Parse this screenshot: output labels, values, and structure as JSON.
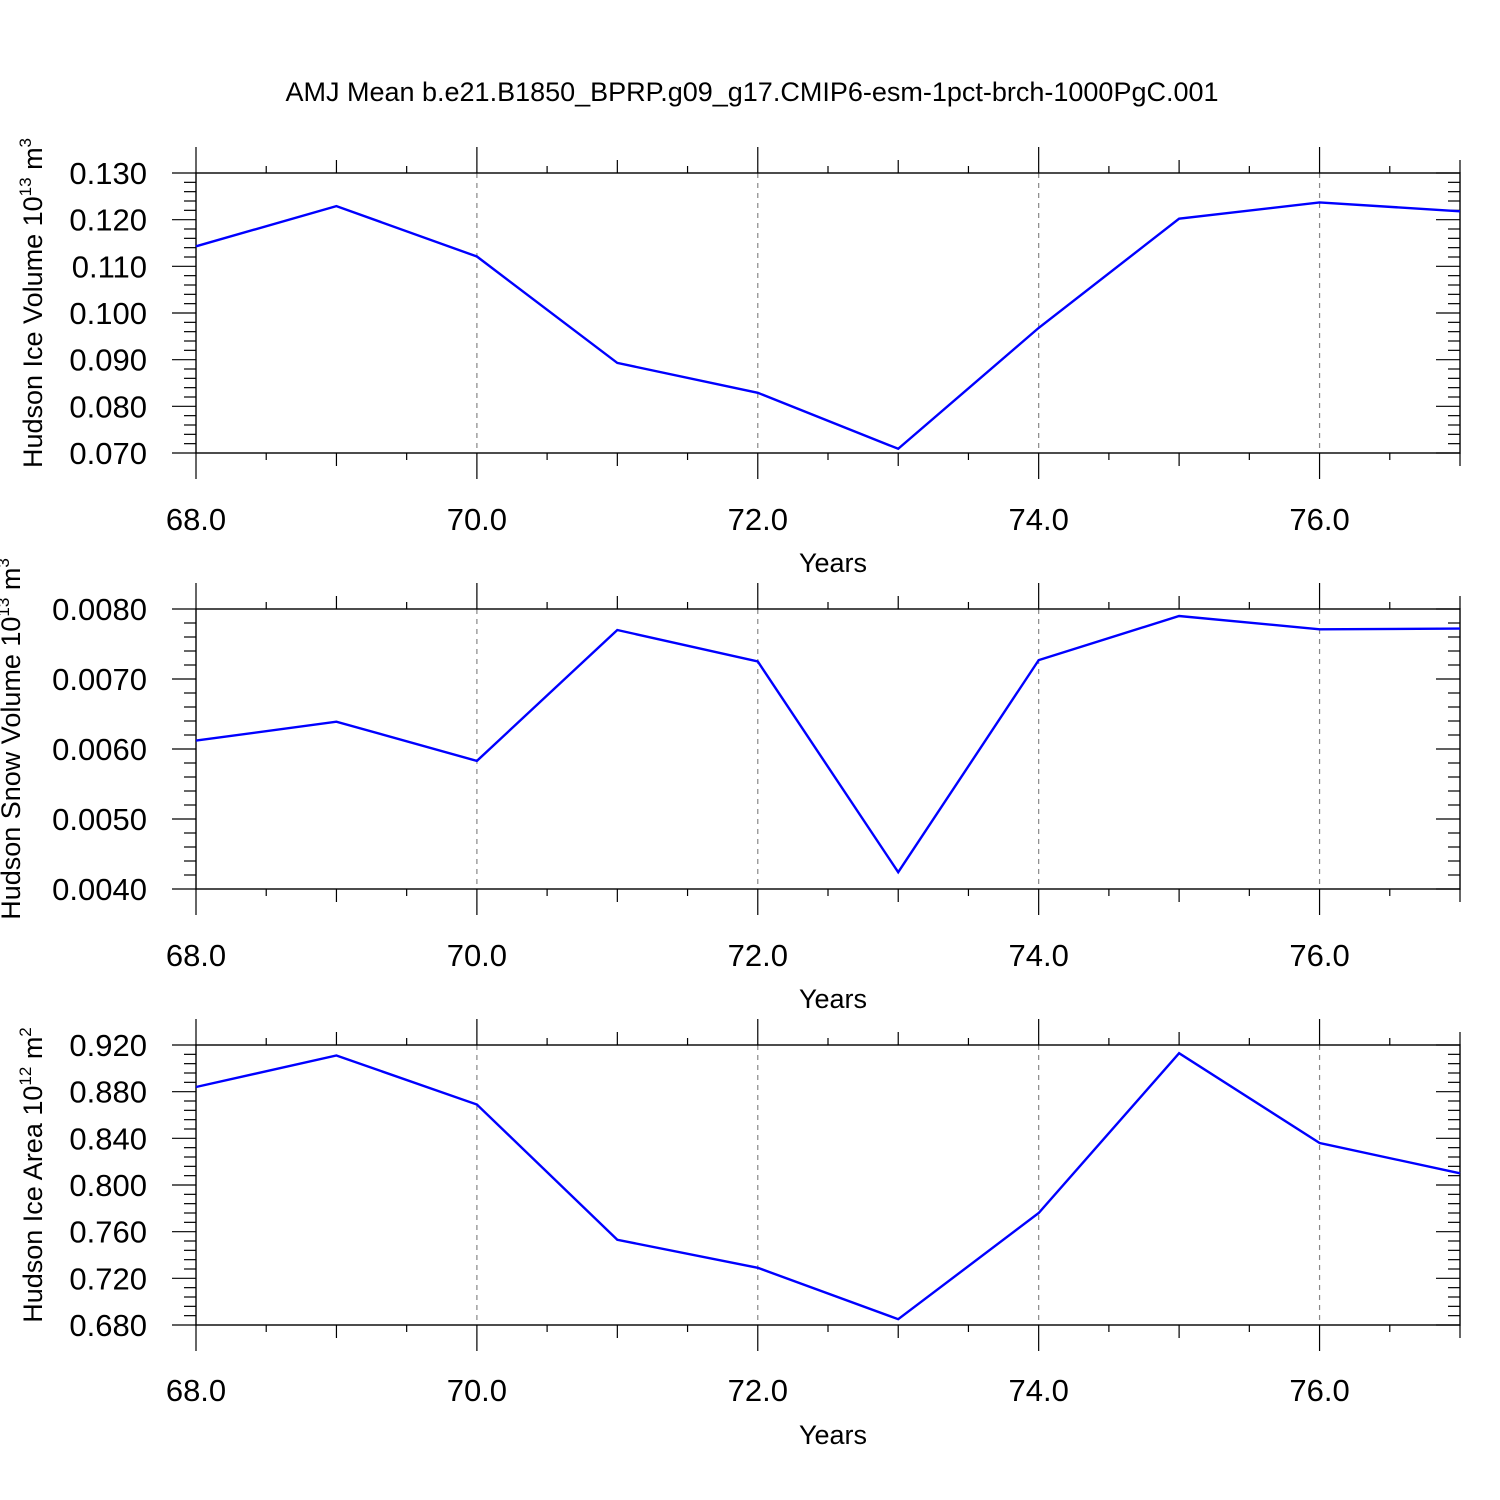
{
  "title": "AMJ Mean b.e21.B1850_BPRP.g09_g17.CMIP6-esm-1pct-brch-1000PgC.001",
  "line_color": "#0000ff",
  "chart_data": [
    {
      "type": "line",
      "title": "",
      "xlabel": "Years",
      "ylabel": "Hudson Ice Volume 10",
      "ylabel_exp": "13",
      "ylabel_unit": " m",
      "ylabel_unit_exp": "3",
      "xlim": [
        68,
        77
      ],
      "ylim": [
        0.07,
        0.13
      ],
      "x_ticks": [
        "68.0",
        "70.0",
        "72.0",
        "74.0",
        "76.0"
      ],
      "y_ticks": [
        "0.070",
        "0.080",
        "0.090",
        "0.100",
        "0.110",
        "0.120",
        "0.130"
      ],
      "grid": "vertical-dashed",
      "x": [
        68,
        69,
        70,
        71,
        72,
        73,
        74,
        75,
        76,
        77
      ],
      "values": [
        0.1143,
        0.1229,
        0.1121,
        0.0893,
        0.0829,
        0.0709,
        0.0968,
        0.1202,
        0.1237,
        0.1218
      ]
    },
    {
      "type": "line",
      "title": "",
      "xlabel": "Years",
      "ylabel": "Hudson Snow Volume 10",
      "ylabel_exp": "13",
      "ylabel_unit": " m",
      "ylabel_unit_exp": "3",
      "xlim": [
        68,
        77
      ],
      "ylim": [
        0.004,
        0.008
      ],
      "x_ticks": [
        "68.0",
        "70.0",
        "72.0",
        "74.0",
        "76.0"
      ],
      "y_ticks": [
        "0.0040",
        "0.0050",
        "0.0060",
        "0.0070",
        "0.0080"
      ],
      "grid": "vertical-dashed",
      "x": [
        68,
        69,
        70,
        71,
        72,
        73,
        74,
        75,
        76,
        77
      ],
      "values": [
        0.00612,
        0.00639,
        0.00583,
        0.0077,
        0.00725,
        0.00424,
        0.00727,
        0.0079,
        0.00771,
        0.00772
      ]
    },
    {
      "type": "line",
      "title": "",
      "xlabel": "Years",
      "ylabel": "Hudson Ice Area 10",
      "ylabel_exp": "12",
      "ylabel_unit": " m",
      "ylabel_unit_exp": "2",
      "xlim": [
        68,
        77
      ],
      "ylim": [
        0.68,
        0.92
      ],
      "x_ticks": [
        "68.0",
        "70.0",
        "72.0",
        "74.0",
        "76.0"
      ],
      "y_ticks": [
        "0.680",
        "0.720",
        "0.760",
        "0.800",
        "0.840",
        "0.880",
        "0.920"
      ],
      "grid": "vertical-dashed",
      "x": [
        68,
        69,
        70,
        71,
        72,
        73,
        74,
        75,
        76,
        77
      ],
      "values": [
        0.884,
        0.911,
        0.869,
        0.753,
        0.729,
        0.685,
        0.776,
        0.913,
        0.836,
        0.81
      ]
    }
  ]
}
